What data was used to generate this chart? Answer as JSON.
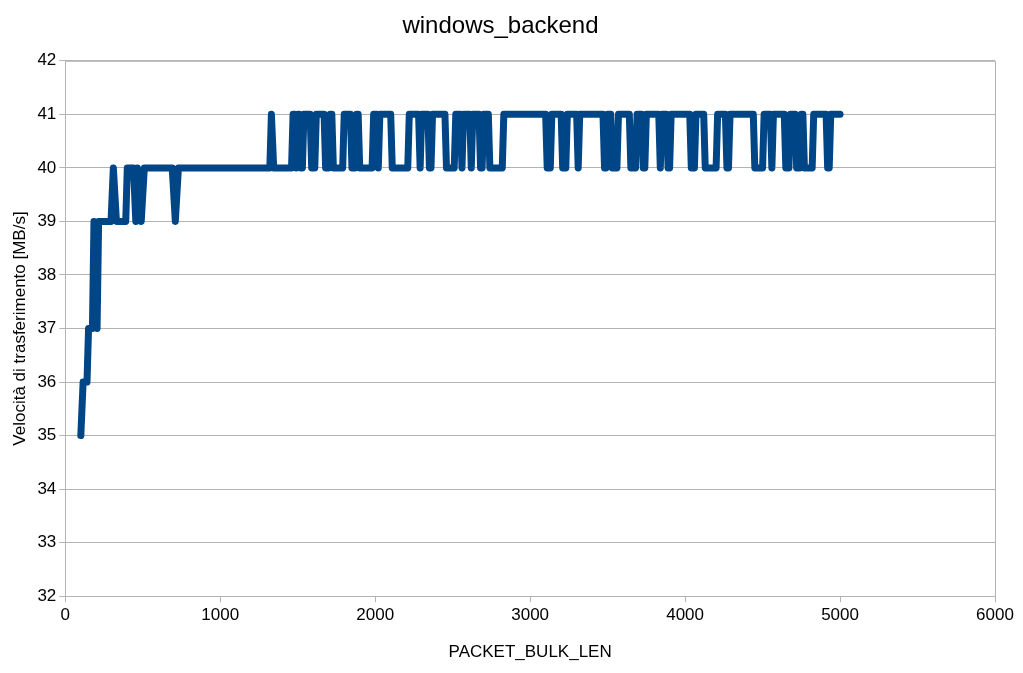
{
  "chart_data": {
    "type": "line",
    "title": "windows_backend",
    "xlabel": "PACKET_BULK_LEN",
    "ylabel": "Velocità di trasferimento [MB/s]",
    "xlim": [
      0,
      6000
    ],
    "xticks": [
      0,
      1000,
      2000,
      3000,
      4000,
      5000,
      6000
    ],
    "ylim": [
      32,
      42
    ],
    "yticks": [
      32,
      33,
      34,
      35,
      36,
      37,
      38,
      39,
      40,
      41,
      42
    ],
    "grid": "y",
    "legend": false,
    "marker": "none",
    "line_style": "solid",
    "series": [
      {
        "color": "#004586",
        "x": [
          100,
          115,
          140,
          150,
          175,
          185,
          205,
          215,
          295,
          310,
          330,
          390,
          400,
          440,
          455,
          465,
          490,
          510,
          690,
          710,
          730,
          1320,
          1330,
          1345,
          1460,
          1470,
          1480,
          1490,
          1500,
          1510,
          1520,
          1530,
          1540,
          1580,
          1590,
          1610,
          1620,
          1670,
          1680,
          1700,
          1710,
          1720,
          1730,
          1790,
          1800,
          1840,
          1850,
          1870,
          1880,
          1890,
          1900,
          1980,
          1990,
          2010,
          2020,
          2030,
          2100,
          2110,
          2210,
          2220,
          2280,
          2290,
          2300,
          2340,
          2350,
          2360,
          2370,
          2450,
          2460,
          2510,
          2520,
          2550,
          2560,
          2570,
          2610,
          2620,
          2630,
          2670,
          2680,
          2690,
          2700,
          2730,
          2740,
          2820,
          2830,
          3100,
          3110,
          3130,
          3140,
          3200,
          3210,
          3230,
          3240,
          3300,
          3310,
          3320,
          3470,
          3480,
          3490,
          3500,
          3520,
          3530,
          3560,
          3570,
          3640,
          3650,
          3680,
          3690,
          3720,
          3730,
          3740,
          3750,
          3830,
          3840,
          3850,
          3880,
          3890,
          3900,
          3910,
          4030,
          4040,
          4060,
          4070,
          4120,
          4130,
          4200,
          4210,
          4260,
          4270,
          4280,
          4290,
          4440,
          4450,
          4500,
          4510,
          4550,
          4560,
          4570,
          4640,
          4650,
          4670,
          4680,
          4710,
          4720,
          4740,
          4750,
          4760,
          4770,
          4820,
          4830,
          4910,
          4920,
          4930,
          4940,
          5000
        ],
        "values": [
          35,
          36,
          36,
          37,
          37,
          39,
          37,
          39,
          39,
          40,
          39,
          39,
          40,
          40,
          39,
          40,
          39,
          40,
          40,
          39,
          40,
          40,
          41,
          40,
          40,
          41,
          41,
          40,
          41,
          41,
          40,
          40,
          41,
          41,
          40,
          40,
          41,
          41,
          40,
          40,
          41,
          41,
          40,
          40,
          41,
          41,
          40,
          40,
          41,
          41,
          40,
          40,
          41,
          41,
          40,
          41,
          41,
          40,
          40,
          41,
          41,
          40,
          41,
          41,
          40,
          40,
          41,
          41,
          40,
          40,
          41,
          41,
          40,
          41,
          41,
          40,
          41,
          41,
          40,
          40,
          41,
          41,
          40,
          40,
          41,
          41,
          40,
          40,
          41,
          41,
          40,
          40,
          41,
          41,
          40,
          41,
          41,
          40,
          40,
          41,
          41,
          40,
          40,
          41,
          41,
          40,
          40,
          41,
          41,
          40,
          40,
          41,
          41,
          40,
          41,
          41,
          40,
          40,
          41,
          41,
          40,
          40,
          41,
          41,
          40,
          40,
          41,
          41,
          40,
          40,
          41,
          41,
          40,
          40,
          41,
          41,
          40,
          41,
          41,
          40,
          40,
          41,
          41,
          40,
          40,
          41,
          41,
          40,
          40,
          41,
          41,
          40,
          40,
          41,
          41
        ]
      }
    ]
  }
}
